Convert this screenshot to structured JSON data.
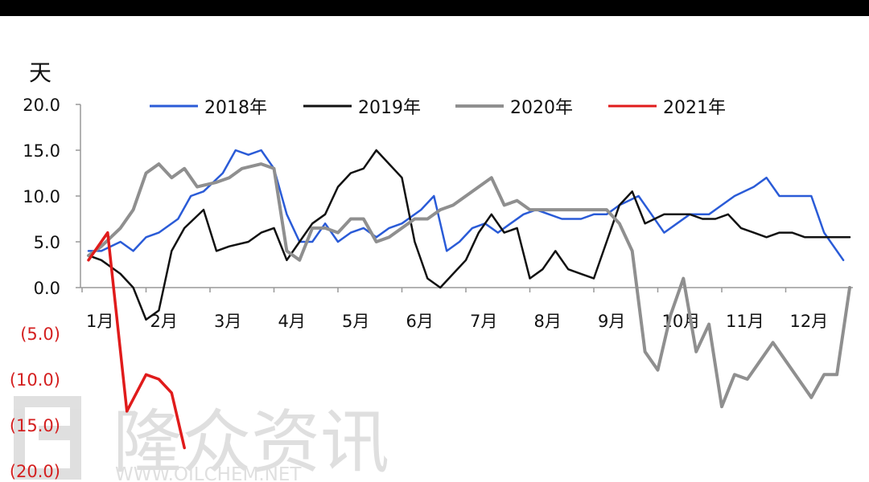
{
  "chart_data": {
    "type": "line",
    "ylabel": "天",
    "ylim": [
      -20,
      20
    ],
    "yticks": [
      20,
      15,
      10,
      5,
      0,
      -5,
      -10,
      -15,
      -20
    ],
    "ytick_labels": [
      "20.0",
      "15.0",
      "10.0",
      "5.0",
      "0.0",
      "(5.0)",
      "(10.0)",
      "(15.0)",
      "(20.0)"
    ],
    "months": [
      "1月",
      "2月",
      "3月",
      "4月",
      "5月",
      "6月",
      "7月",
      "8月",
      "9月",
      "10月",
      "11月",
      "12月"
    ],
    "legend_position": "top",
    "series": [
      {
        "name": "2018年",
        "color": "#2a5bd7",
        "x": [
          1.1,
          1.3,
          1.6,
          1.8,
          2.0,
          2.2,
          2.5,
          2.7,
          2.9,
          3.2,
          3.4,
          3.6,
          3.8,
          4.0,
          4.2,
          4.4,
          4.6,
          4.8,
          5.0,
          5.2,
          5.4,
          5.6,
          5.8,
          6.0,
          6.3,
          6.5,
          6.7,
          6.9,
          7.1,
          7.3,
          7.5,
          7.7,
          7.9,
          8.1,
          8.3,
          8.5,
          8.8,
          9.0,
          9.2,
          9.4,
          9.7,
          9.9,
          10.1,
          10.3,
          10.5,
          10.8,
          11.0,
          11.2,
          11.5,
          11.7,
          11.9,
          12.1,
          12.4,
          12.6,
          12.9
        ],
        "values": [
          4.0,
          4.0,
          5.0,
          4.0,
          5.5,
          6.0,
          7.5,
          10.0,
          10.5,
          12.5,
          15.0,
          14.5,
          15.0,
          13.0,
          8.0,
          5.0,
          5.0,
          7.0,
          5.0,
          6.0,
          6.5,
          5.5,
          6.5,
          7.0,
          8.5,
          10.0,
          4.0,
          5.0,
          6.5,
          7.0,
          6.0,
          7.0,
          8.0,
          8.5,
          8.0,
          7.5,
          7.5,
          8.0,
          8.0,
          9.0,
          10.0,
          8.0,
          6.0,
          7.0,
          8.0,
          8.0,
          9.0,
          10.0,
          11.0,
          12.0,
          10.0,
          10.0,
          10.0,
          6.0,
          3.0
        ]
      },
      {
        "name": "2019年",
        "color": "#111111",
        "x": [
          1.1,
          1.3,
          1.6,
          1.8,
          2.0,
          2.2,
          2.4,
          2.6,
          2.9,
          3.1,
          3.3,
          3.6,
          3.8,
          4.0,
          4.2,
          4.4,
          4.6,
          4.8,
          5.0,
          5.2,
          5.4,
          5.6,
          5.8,
          6.0,
          6.2,
          6.4,
          6.6,
          6.8,
          7.0,
          7.2,
          7.4,
          7.6,
          7.8,
          8.0,
          8.2,
          8.4,
          8.6,
          8.8,
          9.0,
          9.2,
          9.4,
          9.6,
          9.8,
          10.1,
          10.3,
          10.5,
          10.7,
          10.9,
          11.1,
          11.3,
          11.5,
          11.7,
          11.9,
          12.1,
          12.3,
          12.6,
          12.8,
          13.0
        ],
        "values": [
          3.5,
          3.0,
          1.5,
          0.0,
          -3.5,
          -2.5,
          4.0,
          6.5,
          8.5,
          4.0,
          4.5,
          5.0,
          6.0,
          6.5,
          3.0,
          5.0,
          7.0,
          8.0,
          11.0,
          12.5,
          13.0,
          15.0,
          13.5,
          12.0,
          5.0,
          1.0,
          0.0,
          1.5,
          3.0,
          6.0,
          8.0,
          6.0,
          6.5,
          1.0,
          2.0,
          4.0,
          2.0,
          1.5,
          1.0,
          5.0,
          9.0,
          10.5,
          7.0,
          8.0,
          8.0,
          8.0,
          7.5,
          7.5,
          8.0,
          6.5,
          6.0,
          5.5,
          6.0,
          6.0,
          5.5,
          5.5,
          5.5,
          5.5
        ]
      },
      {
        "name": "2020年",
        "color": "#8f8f8f",
        "x": [
          1.1,
          1.3,
          1.6,
          1.8,
          2.0,
          2.2,
          2.4,
          2.6,
          2.8,
          3.1,
          3.3,
          3.5,
          3.8,
          4.0,
          4.2,
          4.4,
          4.6,
          4.8,
          5.0,
          5.2,
          5.4,
          5.6,
          5.8,
          6.0,
          6.2,
          6.4,
          6.6,
          6.8,
          7.0,
          7.2,
          7.4,
          7.6,
          7.8,
          8.0,
          8.2,
          8.4,
          8.6,
          8.8,
          9.0,
          9.2,
          9.4,
          9.6,
          9.8,
          10.0,
          10.2,
          10.4,
          10.6,
          10.8,
          11.0,
          11.2,
          11.4,
          11.6,
          11.8,
          12.0,
          12.2,
          12.4,
          12.6,
          12.8,
          13.0
        ],
        "values": [
          3.5,
          4.5,
          6.5,
          8.5,
          12.5,
          13.5,
          12.0,
          13.0,
          11.0,
          11.5,
          12.0,
          13.0,
          13.5,
          13.0,
          4.0,
          3.0,
          6.5,
          6.5,
          6.0,
          7.5,
          7.5,
          5.0,
          5.5,
          6.5,
          7.5,
          7.5,
          8.5,
          9.0,
          10.0,
          11.0,
          12.0,
          9.0,
          9.5,
          8.5,
          8.5,
          8.5,
          8.5,
          8.5,
          8.5,
          8.5,
          7.0,
          4.0,
          -7.0,
          -9.0,
          -3.0,
          1.0,
          -7.0,
          -4.0,
          -13.0,
          -9.5,
          -10.0,
          -8.0,
          -6.0,
          -8.0,
          -10.0,
          -12.0,
          -9.5,
          -9.5,
          0.0
        ]
      },
      {
        "name": "2021年",
        "color": "#e01b1b",
        "x": [
          1.1,
          1.4,
          1.7,
          2.0,
          2.2,
          2.4,
          2.6
        ],
        "values": [
          3.0,
          6.0,
          -13.5,
          -9.5,
          -10.0,
          -11.5,
          -17.5
        ]
      }
    ]
  },
  "watermark": {
    "cn": "隆众资讯",
    "url": "WWW.OILCHEM.NET"
  }
}
